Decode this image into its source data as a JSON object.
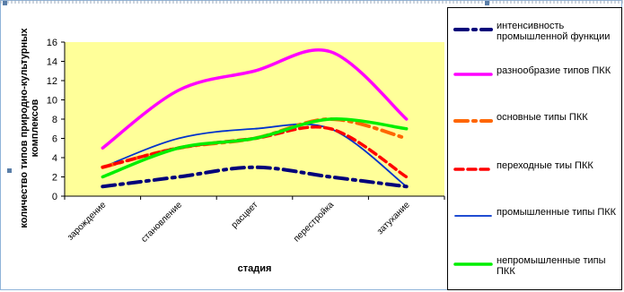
{
  "chart_data": {
    "type": "line",
    "xlabel": "стадия",
    "ylabel": "количество типов природно-культурных комплексов",
    "categories": [
      "зарождение",
      "становление",
      "расцвет",
      "перестройка",
      "затухание"
    ],
    "ylim": [
      0,
      16
    ],
    "yticks": [
      0,
      2,
      4,
      6,
      8,
      10,
      12,
      14,
      16
    ],
    "grid": false,
    "plot_background": "#ffff99",
    "legend_position": "right",
    "series": [
      {
        "name": "интенсивность промышленной функции",
        "color": "#00007a",
        "style": "dashdot",
        "values": [
          1,
          2,
          3,
          2,
          1
        ]
      },
      {
        "name": "разнообразие типов ПКК",
        "color": "#ff00ff",
        "style": "solid",
        "values": [
          5,
          11,
          13,
          15,
          8
        ]
      },
      {
        "name": "основные типы ПКК",
        "color": "#ff6600",
        "style": "dashdot",
        "values": [
          3,
          5,
          6,
          8,
          6
        ]
      },
      {
        "name": "переходные тиы ПКК",
        "color": "#ff0000",
        "style": "dashed",
        "values": [
          3,
          5,
          6,
          7,
          2
        ]
      },
      {
        "name": "промышленные типы ПКК",
        "color": "#0033cc",
        "style": "thin",
        "values": [
          3,
          6,
          7,
          7,
          1
        ]
      },
      {
        "name": "непромышленные типы ПКК",
        "color": "#00ee00",
        "style": "solid",
        "values": [
          2,
          5,
          6,
          8,
          7
        ]
      }
    ]
  }
}
